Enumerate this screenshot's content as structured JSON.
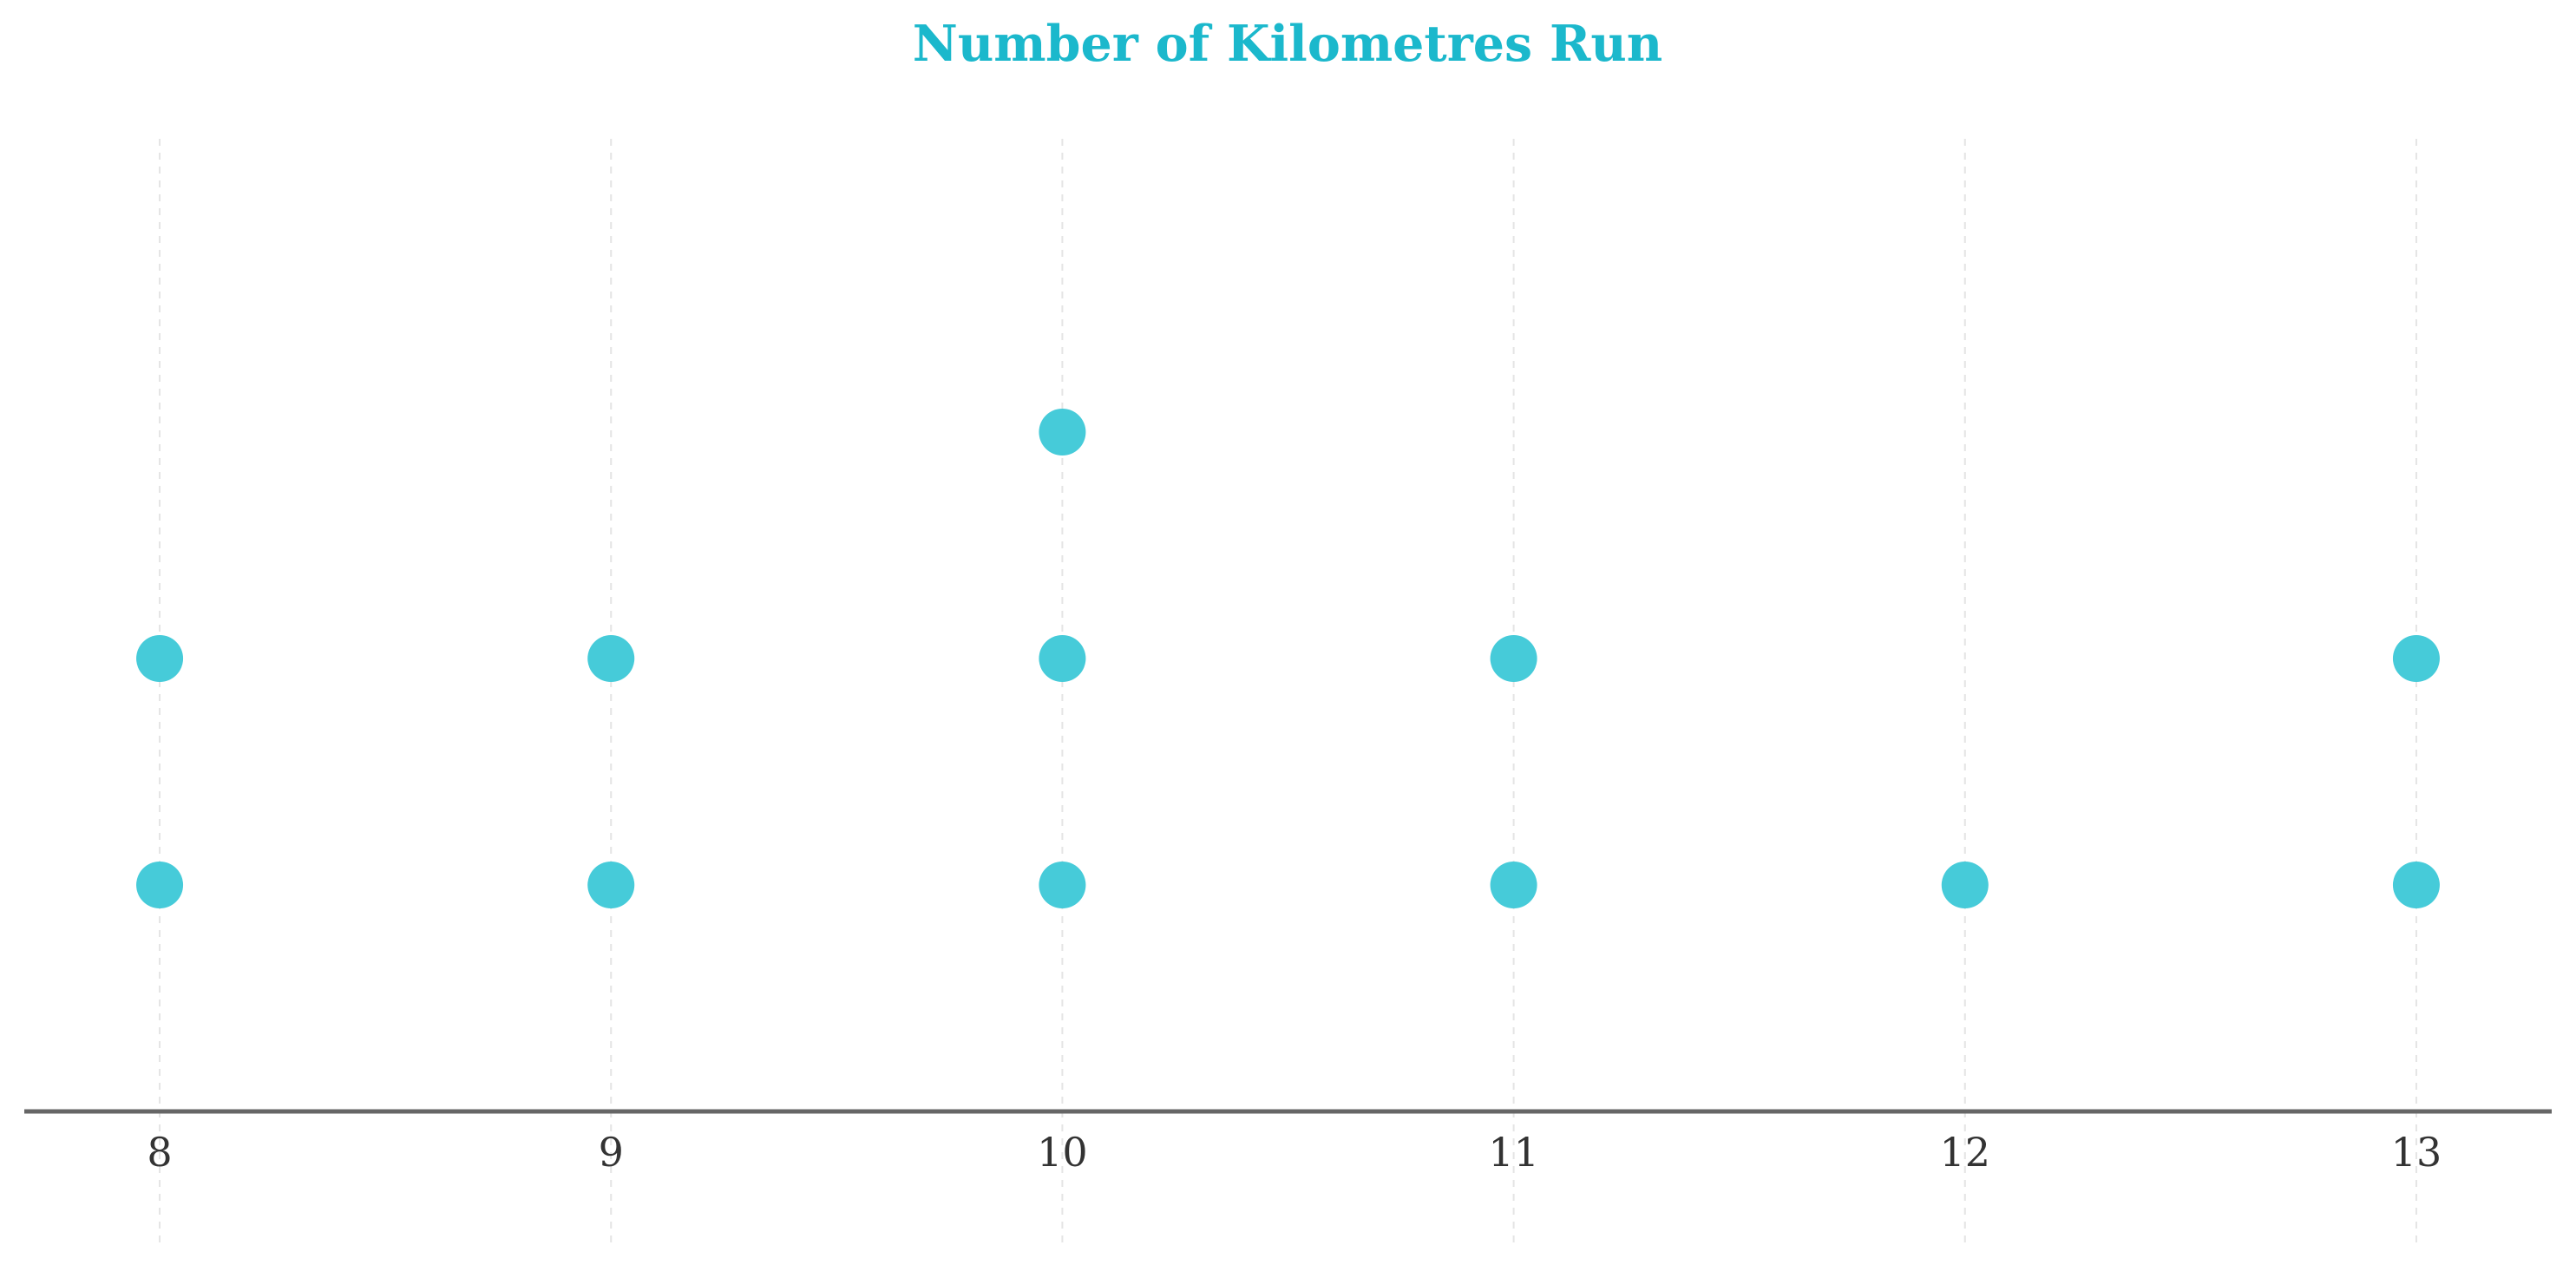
{
  "chart_data": {
    "type": "dot",
    "title": "Number of Kilometres Run",
    "xlabel": "",
    "ylabel": "",
    "categories": [
      8,
      9,
      10,
      11,
      12,
      13
    ],
    "counts": [
      2,
      2,
      3,
      2,
      1,
      2
    ],
    "xlim": [
      7.7,
      13.3
    ],
    "ylim": [
      0,
      4.3
    ],
    "grid": "vertical-dashed",
    "legend": "none"
  },
  "colors": {
    "title": "#1bb8cc",
    "dot": "#46cbd9",
    "axis": "#666666",
    "grid": "#e4e4e4",
    "tick_label": "#333333"
  }
}
